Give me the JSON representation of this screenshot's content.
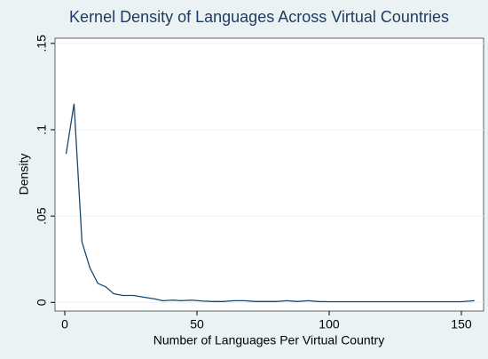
{
  "chart_data": {
    "type": "line",
    "title": "Kernel Density of Languages Across Virtual Countries",
    "x_label": "Number of Languages Per Virtual Country",
    "y_label": "Density",
    "x": [
      0.5,
      3.5,
      6.5,
      9.5,
      12.5,
      15.5,
      18.5,
      22,
      26,
      30,
      34,
      37,
      41,
      44,
      48,
      52,
      56,
      60,
      64,
      68,
      72,
      80,
      84,
      88,
      92,
      96,
      100,
      110,
      120,
      130,
      140,
      150,
      155
    ],
    "series": [
      {
        "name": "Density",
        "color": "#1a476f",
        "values": [
          0.086,
          0.115,
          0.035,
          0.02,
          0.011,
          0.009,
          0.005,
          0.004,
          0.004,
          0.003,
          0.002,
          0.001,
          0.0013,
          0.001,
          0.0013,
          0.0008,
          0.0005,
          0.0005,
          0.001,
          0.001,
          0.0005,
          0.0005,
          0.001,
          0.0005,
          0.001,
          0.0005,
          0.0004,
          0.0004,
          0.0004,
          0.0004,
          0.0004,
          0.0004,
          0.001
        ]
      }
    ],
    "xlim": [
      -3.7,
      158.4
    ],
    "ylim": [
      -0.005,
      0.153
    ],
    "xticks": [
      0,
      50,
      100,
      150
    ],
    "yticks": [
      0,
      {
        "value": 0.05,
        "label": ".05"
      },
      {
        "value": 0.1,
        "label": ".1"
      },
      {
        "value": 0.15,
        "label": ".15"
      }
    ],
    "grid": true
  }
}
